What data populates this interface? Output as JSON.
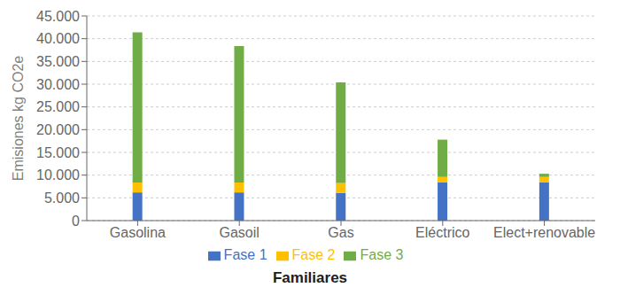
{
  "chart_data": {
    "type": "bar",
    "stacked": true,
    "title": "Familiares",
    "ylabel": "Emisiones kg CO2e",
    "categories": [
      "Gasolina",
      "Gasoil",
      "Gas",
      "Eléctrico",
      "Elect+renovable"
    ],
    "series": [
      {
        "name": "Fase 1",
        "color": "#4472C4",
        "values": [
          6200,
          6200,
          6100,
          8400,
          8400
        ]
      },
      {
        "name": "Fase 2",
        "color": "#FFC000",
        "values": [
          2200,
          2200,
          2200,
          1200,
          1200
        ]
      },
      {
        "name": "Fase 3",
        "color": "#70AD47",
        "values": [
          33000,
          30000,
          22100,
          8200,
          700
        ]
      }
    ],
    "ylim": [
      0,
      45000
    ],
    "yticks": [
      0,
      {
        "value": 5000,
        "label": "5.000"
      },
      {
        "value": 10000,
        "label": "10.000"
      },
      {
        "value": 15000,
        "label": "15.000"
      },
      {
        "value": 20000,
        "label": "20.000"
      },
      {
        "value": 25000,
        "label": "25.000"
      },
      {
        "value": 30000,
        "label": "30.000"
      },
      {
        "value": 35000,
        "label": "35.000"
      },
      {
        "value": 40000,
        "label": "40.000"
      },
      {
        "value": 45000,
        "label": "45.000"
      }
    ],
    "grid": true,
    "legend": "bottom"
  }
}
